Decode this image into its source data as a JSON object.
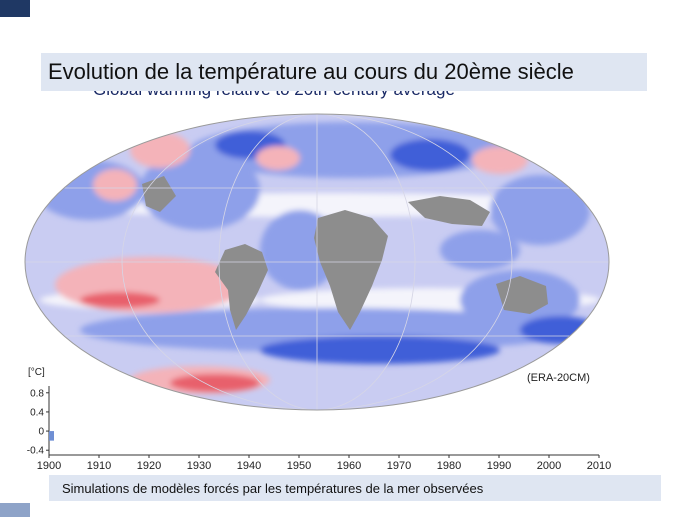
{
  "slide": {
    "title": "Evolution de la température au cours du 20ème siècle",
    "footer": "Simulations de modèles forcés par les températures de la mer observées"
  },
  "map": {
    "subtitle": "Global warming relative to 20th-century average",
    "source_label": "(ERA-20CM)",
    "projection": "mollweide",
    "colors": {
      "ocean_base": "#c9ccf2",
      "warm": "#f4b3b9",
      "strong_warm": "#e8616c",
      "cool": "#8ea0ea",
      "strong_cool": "#3f5fd8",
      "neutral": "#f4f4fb",
      "land_gray": "#8d8d8d"
    }
  },
  "chart_data": {
    "type": "bar",
    "title": "",
    "ylabel": "[°C]",
    "xlim": [
      1900,
      2010
    ],
    "ylim": [
      -0.5,
      0.9
    ],
    "xticks": [
      1900,
      1910,
      1920,
      1930,
      1940,
      1950,
      1960,
      1970,
      1980,
      1990,
      2000,
      2010
    ],
    "yticks": [
      0.8,
      0.4,
      0,
      -0.4
    ],
    "ytick_labels": [
      "0.8",
      "0.4",
      "0",
      "-0.4"
    ],
    "series": [
      {
        "x": [
          1900
        ],
        "values": [
          -0.2
        ],
        "color": "#6f8fd4"
      }
    ]
  }
}
